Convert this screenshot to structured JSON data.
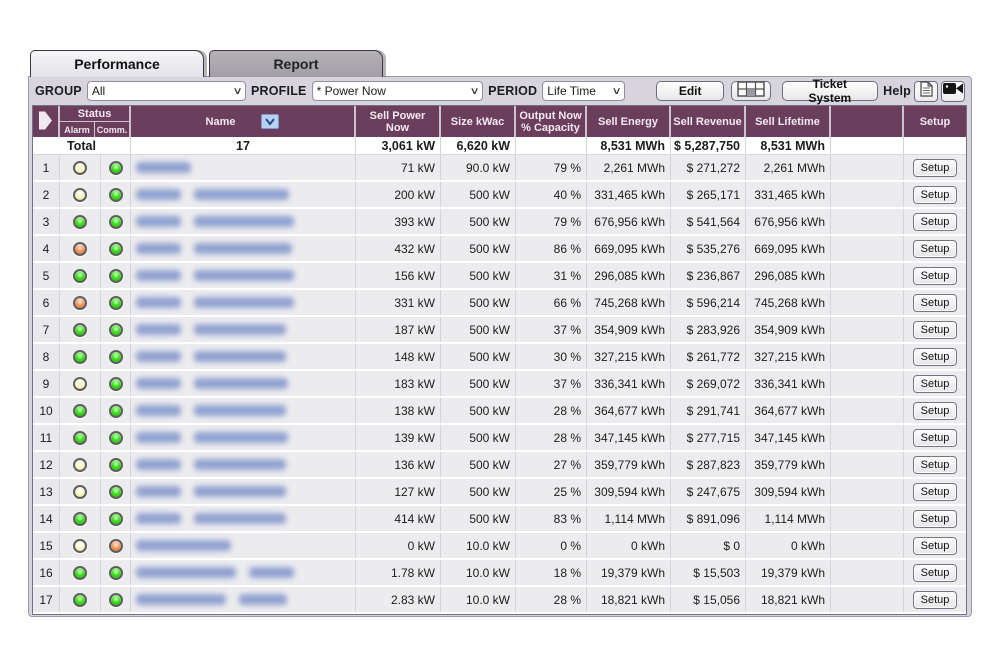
{
  "tabs": [
    {
      "label": "Performance",
      "active": true
    },
    {
      "label": "Report",
      "active": false
    }
  ],
  "toolbar": {
    "group_label": "GROUP",
    "group_value": "All",
    "profile_label": "PROFILE",
    "profile_value": "* Power Now",
    "period_label": "PERIOD",
    "period_value": "Life Time",
    "edit_button": "Edit",
    "ticket_button": "Ticket System",
    "help_label": "Help"
  },
  "table": {
    "headers": {
      "status": "Status",
      "alarm": "Alarm",
      "comm": "Comm.",
      "name": "Name",
      "sell_power": "Sell Power Now",
      "size": "Size kWac",
      "output": "Output Now % Capacity",
      "sell_energy": "Sell Energy",
      "sell_revenue": "Sell Revenue",
      "sell_lifetime": "Sell Lifetime",
      "empty": "",
      "setup": "Setup"
    },
    "setup_button_label": "Setup",
    "total": {
      "label": "Total",
      "count": "17",
      "sell_power": "3,061 kW",
      "size": "6,620 kW",
      "output": "",
      "sell_energy": "8,531 MWh",
      "sell_revenue": "$ 5,287,750",
      "sell_lifetime": "8,531 MWh"
    },
    "rows": [
      {
        "num": "1",
        "alarm": "yellow",
        "comm": "green",
        "name_mask": [
          55
        ],
        "sell_power": "71 kW",
        "size": "90.0 kW",
        "output": "79 %",
        "sell_energy": "2,261 MWh",
        "sell_revenue": "$ 271,272",
        "sell_lifetime": "2,261 MWh"
      },
      {
        "num": "2",
        "alarm": "yellow",
        "comm": "green",
        "name_mask": [
          45,
          95
        ],
        "sell_power": "200 kW",
        "size": "500 kW",
        "output": "40 %",
        "sell_energy": "331,465 kWh",
        "sell_revenue": "$ 265,171",
        "sell_lifetime": "331,465 kWh"
      },
      {
        "num": "3",
        "alarm": "green",
        "comm": "green",
        "name_mask": [
          45,
          100
        ],
        "sell_power": "393 kW",
        "size": "500 kW",
        "output": "79 %",
        "sell_energy": "676,956 kWh",
        "sell_revenue": "$ 541,564",
        "sell_lifetime": "676,956 kWh"
      },
      {
        "num": "4",
        "alarm": "orange",
        "comm": "green",
        "name_mask": [
          45,
          98
        ],
        "sell_power": "432 kW",
        "size": "500 kW",
        "output": "86 %",
        "sell_energy": "669,095 kWh",
        "sell_revenue": "$ 535,276",
        "sell_lifetime": "669,095 kWh"
      },
      {
        "num": "5",
        "alarm": "green",
        "comm": "green",
        "name_mask": [
          45,
          100
        ],
        "sell_power": "156 kW",
        "size": "500 kW",
        "output": "31 %",
        "sell_energy": "296,085 kWh",
        "sell_revenue": "$ 236,867",
        "sell_lifetime": "296,085 kWh"
      },
      {
        "num": "6",
        "alarm": "orange",
        "comm": "green",
        "name_mask": [
          45,
          100
        ],
        "sell_power": "331 kW",
        "size": "500 kW",
        "output": "66 %",
        "sell_energy": "745,268 kWh",
        "sell_revenue": "$ 596,214",
        "sell_lifetime": "745,268 kWh"
      },
      {
        "num": "7",
        "alarm": "green",
        "comm": "green",
        "name_mask": [
          45,
          92
        ],
        "sell_power": "187 kW",
        "size": "500 kW",
        "output": "37 %",
        "sell_energy": "354,909 kWh",
        "sell_revenue": "$ 283,926",
        "sell_lifetime": "354,909 kWh"
      },
      {
        "num": "8",
        "alarm": "green",
        "comm": "green",
        "name_mask": [
          45,
          92
        ],
        "sell_power": "148 kW",
        "size": "500 kW",
        "output": "30 %",
        "sell_energy": "327,215 kWh",
        "sell_revenue": "$ 261,772",
        "sell_lifetime": "327,215 kWh"
      },
      {
        "num": "9",
        "alarm": "yellow",
        "comm": "green",
        "name_mask": [
          45,
          94
        ],
        "sell_power": "183 kW",
        "size": "500 kW",
        "output": "37 %",
        "sell_energy": "336,341 kWh",
        "sell_revenue": "$ 269,072",
        "sell_lifetime": "336,341 kWh"
      },
      {
        "num": "10",
        "alarm": "green",
        "comm": "green",
        "name_mask": [
          45,
          92
        ],
        "sell_power": "138 kW",
        "size": "500 kW",
        "output": "28 %",
        "sell_energy": "364,677 kWh",
        "sell_revenue": "$ 291,741",
        "sell_lifetime": "364,677 kWh"
      },
      {
        "num": "11",
        "alarm": "green",
        "comm": "green",
        "name_mask": [
          45,
          94
        ],
        "sell_power": "139 kW",
        "size": "500 kW",
        "output": "28 %",
        "sell_energy": "347,145 kWh",
        "sell_revenue": "$ 277,715",
        "sell_lifetime": "347,145 kWh"
      },
      {
        "num": "12",
        "alarm": "yellow",
        "comm": "green",
        "name_mask": [
          45,
          92
        ],
        "sell_power": "136 kW",
        "size": "500 kW",
        "output": "27 %",
        "sell_energy": "359,779 kWh",
        "sell_revenue": "$ 287,823",
        "sell_lifetime": "359,779 kWh"
      },
      {
        "num": "13",
        "alarm": "yellow",
        "comm": "green",
        "name_mask": [
          45,
          92
        ],
        "sell_power": "127 kW",
        "size": "500 kW",
        "output": "25 %",
        "sell_energy": "309,594 kWh",
        "sell_revenue": "$ 247,675",
        "sell_lifetime": "309,594 kWh"
      },
      {
        "num": "14",
        "alarm": "green",
        "comm": "green",
        "name_mask": [
          45,
          92
        ],
        "sell_power": "414 kW",
        "size": "500 kW",
        "output": "83 %",
        "sell_energy": "1,114 MWh",
        "sell_revenue": "$ 891,096",
        "sell_lifetime": "1,114 MWh"
      },
      {
        "num": "15",
        "alarm": "yellow",
        "comm": "orange",
        "name_mask": [
          95
        ],
        "sell_power": "0 kW",
        "size": "10.0 kW",
        "output": "0 %",
        "sell_energy": "0 kWh",
        "sell_revenue": "$ 0",
        "sell_lifetime": "0 kWh"
      },
      {
        "num": "16",
        "alarm": "green",
        "comm": "green",
        "name_mask": [
          100,
          45
        ],
        "sell_power": "1.78 kW",
        "size": "10.0 kW",
        "output": "18 %",
        "sell_energy": "19,379 kWh",
        "sell_revenue": "$ 15,503",
        "sell_lifetime": "19,379 kWh"
      },
      {
        "num": "17",
        "alarm": "green",
        "comm": "green",
        "name_mask": [
          90,
          48
        ],
        "sell_power": "2.83 kW",
        "size": "10.0 kW",
        "output": "28 %",
        "sell_energy": "18,821 kWh",
        "sell_revenue": "$ 15,056",
        "sell_lifetime": "18,821 kWh"
      }
    ]
  },
  "colors": {
    "header_bg": "#6b3e5e",
    "panel_bg": "#d7d4de",
    "led_green": "#3fe31d",
    "led_yellow": "#f7f7c4",
    "led_orange": "#f49560"
  }
}
